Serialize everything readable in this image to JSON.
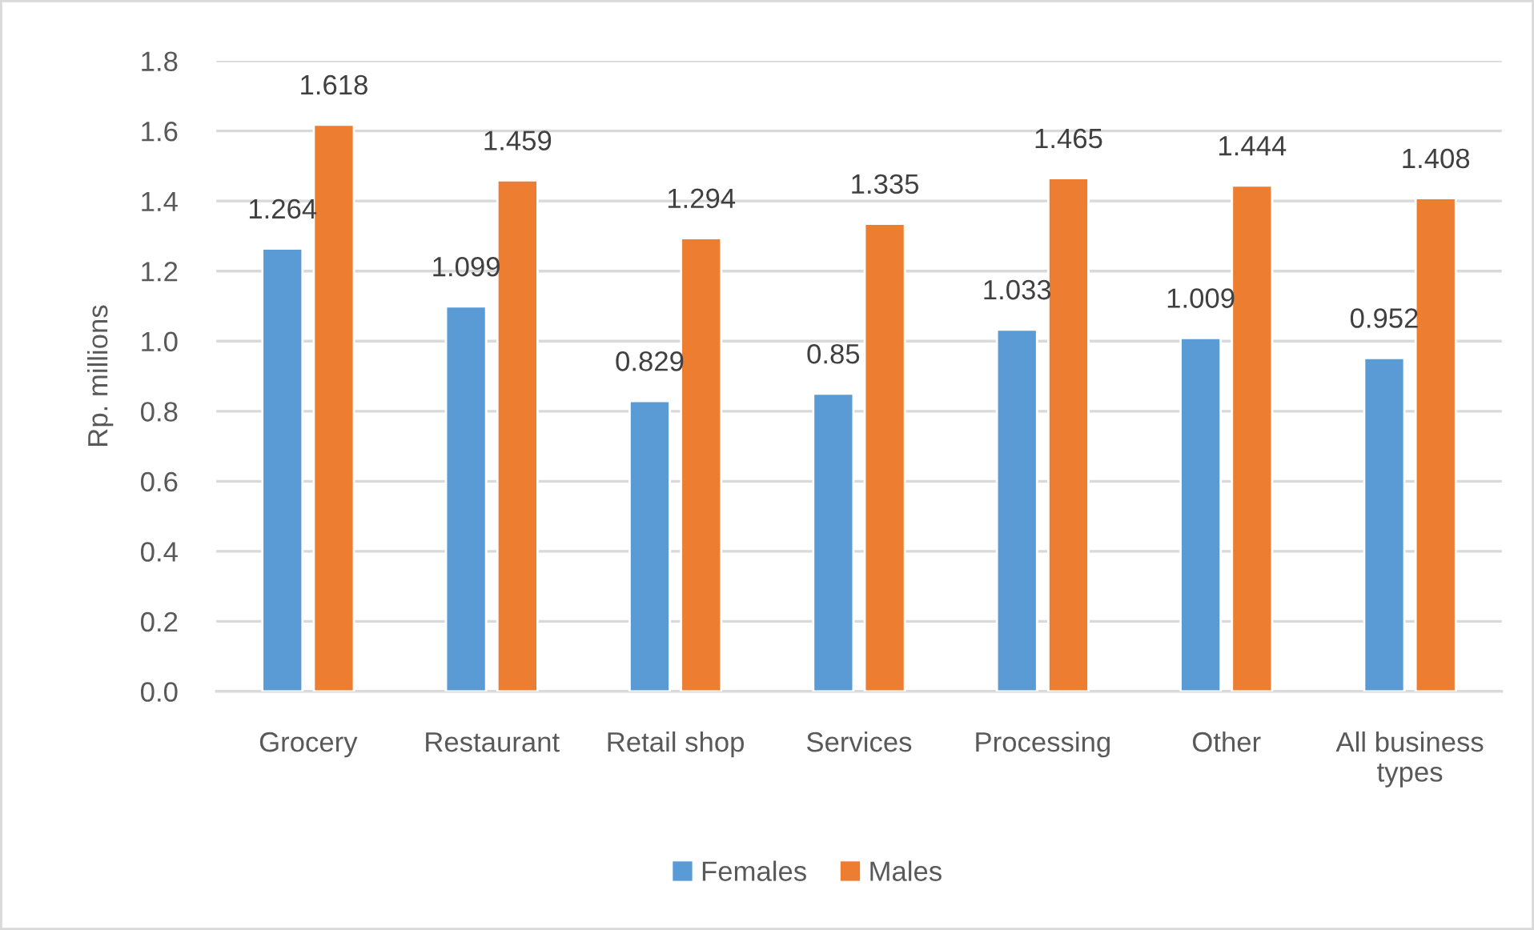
{
  "chart_data": {
    "type": "bar",
    "ylabel": "Rp. millions",
    "categories": [
      "Grocery",
      "Restaurant",
      "Retail shop",
      "Services",
      "Processing",
      "Other",
      "All business types"
    ],
    "series": [
      {
        "name": "Females",
        "color": "#5b9bd5",
        "values": [
          1.264,
          1.099,
          0.829,
          0.85,
          1.033,
          1.009,
          0.952
        ]
      },
      {
        "name": "Males",
        "color": "#ed7d31",
        "values": [
          1.618,
          1.459,
          1.294,
          1.335,
          1.465,
          1.444,
          1.408
        ]
      }
    ],
    "ylim": [
      0,
      1.8
    ],
    "yticks": [
      {
        "value": 0,
        "label": "0.0"
      },
      0.2,
      0.4,
      0.6,
      0.8,
      {
        "value": 1,
        "label": "1.0"
      },
      1.2,
      1.4,
      1.6,
      1.8
    ],
    "grid": "y",
    "legend": "bottom",
    "data_labels": true
  }
}
